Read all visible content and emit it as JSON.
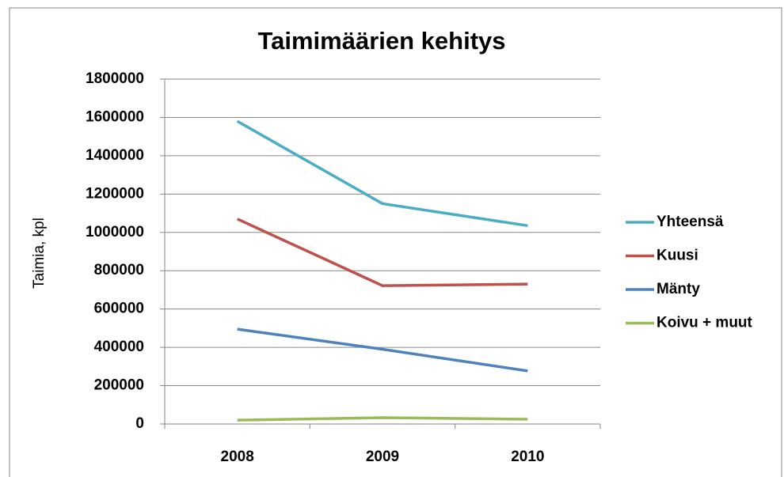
{
  "chart_data": {
    "type": "line",
    "title": "Taimimäärien kehitys",
    "y_label": "Taimia, kpl",
    "categories": [
      "2008",
      "2009",
      "2010"
    ],
    "series": [
      {
        "name": "Yhteensä",
        "color": "#4bacc6",
        "values": [
          1580000,
          1150000,
          1035000
        ]
      },
      {
        "name": "Kuusi",
        "color": "#c0504d",
        "values": [
          1070000,
          722000,
          730000
        ]
      },
      {
        "name": "Mänty",
        "color": "#4f81bd",
        "values": [
          495000,
          390000,
          277000
        ]
      },
      {
        "name": "Koivu + muut",
        "color": "#9bbb59",
        "values": [
          20000,
          33000,
          25000
        ]
      }
    ],
    "ylim": [
      0,
      1800000
    ],
    "yticks": [
      0,
      200000,
      400000,
      600000,
      800000,
      1000000,
      1200000,
      1400000,
      1600000,
      1800000
    ],
    "grid": true,
    "legend": "right"
  }
}
